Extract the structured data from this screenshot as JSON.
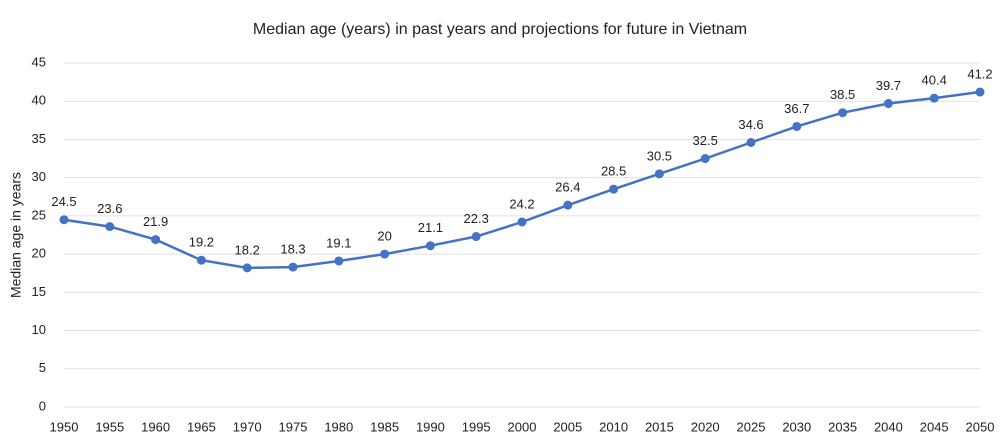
{
  "chart_data": {
    "type": "line",
    "title": "Median age (years) in past years and projections for future in Vietnam",
    "y_label": "Median age in years",
    "x": [
      1950,
      1955,
      1960,
      1965,
      1970,
      1975,
      1980,
      1985,
      1990,
      1995,
      2000,
      2005,
      2010,
      2015,
      2020,
      2025,
      2030,
      2035,
      2040,
      2045,
      2050
    ],
    "xlim": [
      1950,
      2050
    ],
    "xticks": [
      1950,
      1955,
      1960,
      1965,
      1970,
      1975,
      1980,
      1985,
      1990,
      1995,
      2000,
      2005,
      2010,
      2015,
      2020,
      2025,
      2030,
      2035,
      2040,
      2045,
      2050
    ],
    "series": [
      {
        "name": "Median age",
        "color": "#4472c4",
        "values": [
          24.5,
          23.6,
          21.9,
          19.2,
          18.2,
          18.3,
          19.1,
          20,
          21.1,
          22.3,
          24.2,
          26.4,
          28.5,
          30.5,
          32.5,
          34.6,
          36.7,
          38.5,
          39.7,
          40.4,
          41.2
        ]
      }
    ],
    "ylim": [
      0,
      45
    ],
    "yticks": [
      0,
      5,
      10,
      15,
      20,
      25,
      30,
      35,
      40,
      45
    ],
    "grid": true
  }
}
